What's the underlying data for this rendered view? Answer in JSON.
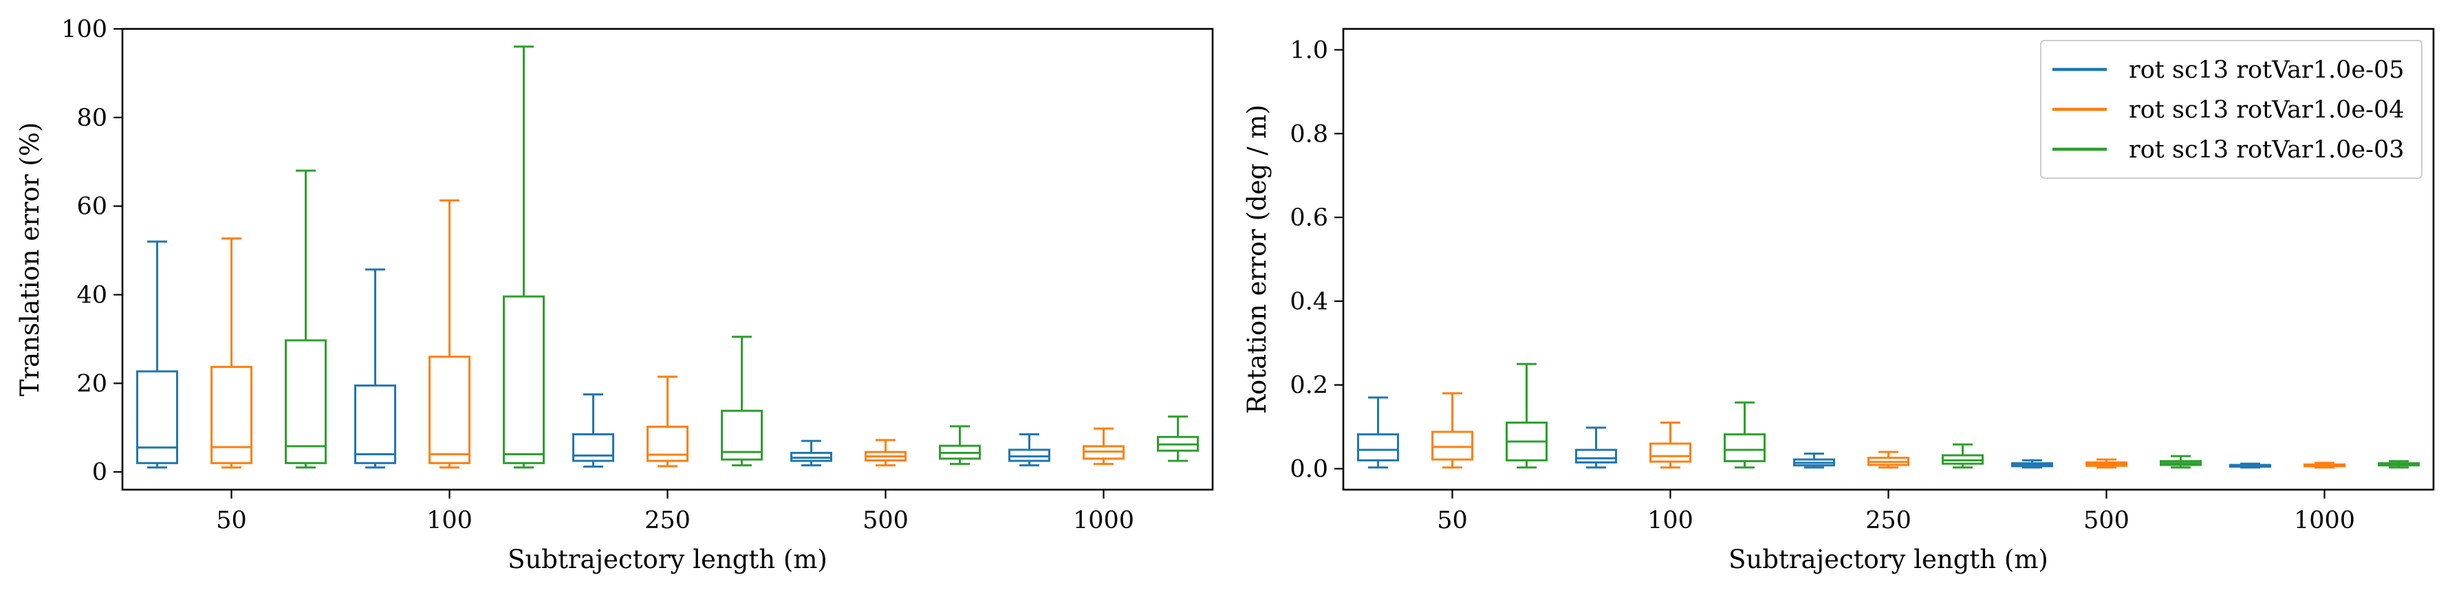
{
  "colors": {
    "series": [
      "#1f77b4",
      "#ff7f0e",
      "#2ca02c"
    ],
    "axis": "#000000",
    "background": "#ffffff"
  },
  "chart_data": [
    {
      "type": "box",
      "title": "",
      "xlabel": "Subtrajectory length (m)",
      "ylabel": "Translation error (%)",
      "categories": [
        "50",
        "100",
        "250",
        "500",
        "1000"
      ],
      "ylim": [
        -4,
        100
      ],
      "yticks": [
        0,
        20,
        40,
        60,
        80,
        100
      ],
      "grid": false,
      "legend": "none",
      "series": [
        {
          "name": "rot sc13 rotVar1.0e-05",
          "boxes": [
            {
              "min": 1.0,
              "q1": 2.0,
              "median": 5.5,
              "q3": 22.7,
              "max": 52.0
            },
            {
              "min": 1.0,
              "q1": 2.0,
              "median": 4.0,
              "q3": 19.5,
              "max": 45.7
            },
            {
              "min": 1.2,
              "q1": 2.5,
              "median": 3.7,
              "q3": 8.5,
              "max": 17.5
            },
            {
              "min": 1.5,
              "q1": 2.5,
              "median": 3.2,
              "q3": 4.3,
              "max": 7.0
            },
            {
              "min": 1.5,
              "q1": 2.5,
              "median": 3.5,
              "q3": 5.0,
              "max": 8.5
            }
          ]
        },
        {
          "name": "rot sc13 rotVar1.0e-04",
          "boxes": [
            {
              "min": 1.0,
              "q1": 2.0,
              "median": 5.6,
              "q3": 23.7,
              "max": 52.7
            },
            {
              "min": 1.0,
              "q1": 2.0,
              "median": 4.0,
              "q3": 26.0,
              "max": 61.3
            },
            {
              "min": 1.3,
              "q1": 2.5,
              "median": 3.9,
              "q3": 10.2,
              "max": 21.5
            },
            {
              "min": 1.5,
              "q1": 2.6,
              "median": 3.5,
              "q3": 4.5,
              "max": 7.2
            },
            {
              "min": 1.8,
              "q1": 3.0,
              "median": 4.6,
              "q3": 5.8,
              "max": 9.8
            }
          ]
        },
        {
          "name": "rot sc13 rotVar1.0e-03",
          "boxes": [
            {
              "min": 1.0,
              "q1": 2.0,
              "median": 5.8,
              "q3": 29.7,
              "max": 68.0
            },
            {
              "min": 1.0,
              "q1": 2.0,
              "median": 4.0,
              "q3": 39.6,
              "max": 96.0
            },
            {
              "min": 1.5,
              "q1": 2.8,
              "median": 4.5,
              "q3": 13.8,
              "max": 30.5
            },
            {
              "min": 1.8,
              "q1": 3.0,
              "median": 4.3,
              "q3": 5.9,
              "max": 10.3
            },
            {
              "min": 2.5,
              "q1": 4.8,
              "median": 6.2,
              "q3": 7.9,
              "max": 12.5
            }
          ]
        }
      ]
    },
    {
      "type": "box",
      "title": "",
      "xlabel": "Subtrajectory length (m)",
      "ylabel": "Rotation error (deg / m)",
      "categories": [
        "50",
        "100",
        "250",
        "500",
        "1000"
      ],
      "ylim": [
        -0.05,
        1.05
      ],
      "yticks": [
        "0.0",
        "0.2",
        "0.4",
        "0.6",
        "0.8",
        "1.0"
      ],
      "grid": false,
      "legend": "top-right",
      "series": [
        {
          "name": "rot sc13 rotVar1.0e-05",
          "boxes": [
            {
              "min": 0.003,
              "q1": 0.02,
              "median": 0.045,
              "q3": 0.082,
              "max": 0.17
            },
            {
              "min": 0.003,
              "q1": 0.015,
              "median": 0.025,
              "q3": 0.045,
              "max": 0.098
            },
            {
              "min": 0.003,
              "q1": 0.008,
              "median": 0.014,
              "q3": 0.022,
              "max": 0.036
            },
            {
              "min": 0.003,
              "q1": 0.006,
              "median": 0.01,
              "q3": 0.013,
              "max": 0.02
            },
            {
              "min": 0.003,
              "q1": 0.005,
              "median": 0.007,
              "q3": 0.009,
              "max": 0.012
            }
          ]
        },
        {
          "name": "rot sc13 rotVar1.0e-04",
          "boxes": [
            {
              "min": 0.003,
              "q1": 0.022,
              "median": 0.052,
              "q3": 0.088,
              "max": 0.18
            },
            {
              "min": 0.003,
              "q1": 0.017,
              "median": 0.03,
              "q3": 0.06,
              "max": 0.11
            },
            {
              "min": 0.003,
              "q1": 0.009,
              "median": 0.016,
              "q3": 0.026,
              "max": 0.04
            },
            {
              "min": 0.003,
              "q1": 0.007,
              "median": 0.011,
              "q3": 0.015,
              "max": 0.022
            },
            {
              "min": 0.003,
              "q1": 0.006,
              "median": 0.008,
              "q3": 0.01,
              "max": 0.014
            }
          ]
        },
        {
          "name": "rot sc13 rotVar1.0e-03",
          "boxes": [
            {
              "min": 0.003,
              "q1": 0.02,
              "median": 0.065,
              "q3": 0.11,
              "max": 0.25
            },
            {
              "min": 0.003,
              "q1": 0.018,
              "median": 0.045,
              "q3": 0.082,
              "max": 0.158
            },
            {
              "min": 0.003,
              "q1": 0.012,
              "median": 0.02,
              "q3": 0.032,
              "max": 0.058
            },
            {
              "min": 0.003,
              "q1": 0.009,
              "median": 0.013,
              "q3": 0.018,
              "max": 0.03
            },
            {
              "min": 0.003,
              "q1": 0.008,
              "median": 0.011,
              "q3": 0.013,
              "max": 0.018
            }
          ]
        }
      ]
    }
  ]
}
